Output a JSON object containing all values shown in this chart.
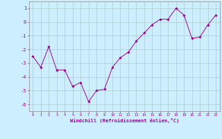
{
  "x": [
    0,
    1,
    2,
    3,
    4,
    5,
    6,
    7,
    8,
    9,
    10,
    11,
    12,
    13,
    14,
    15,
    16,
    17,
    18,
    19,
    20,
    21,
    22,
    23
  ],
  "y": [
    -2.5,
    -3.3,
    -1.8,
    -3.5,
    -3.5,
    -4.7,
    -4.4,
    -5.8,
    -5.0,
    -4.9,
    -3.3,
    -2.6,
    -2.2,
    -1.4,
    -0.8,
    -0.2,
    0.2,
    0.2,
    1.0,
    0.5,
    -1.2,
    -1.1,
    -0.2,
    0.5
  ],
  "line_color": "#990099",
  "marker": "D",
  "marker_size": 1.8,
  "bg_color": "#cceeff",
  "grid_color": "#aacccc",
  "xlabel": "Windchill (Refroidissement éolien,°C)",
  "tick_color": "#990099",
  "ylim": [
    -6.5,
    1.5
  ],
  "yticks": [
    -6,
    -5,
    -4,
    -3,
    -2,
    -1,
    0,
    1
  ],
  "xlim": [
    -0.5,
    23.5
  ],
  "xticks": [
    0,
    1,
    2,
    3,
    4,
    5,
    6,
    7,
    8,
    9,
    10,
    11,
    12,
    13,
    14,
    15,
    16,
    17,
    18,
    19,
    20,
    21,
    22,
    23
  ]
}
